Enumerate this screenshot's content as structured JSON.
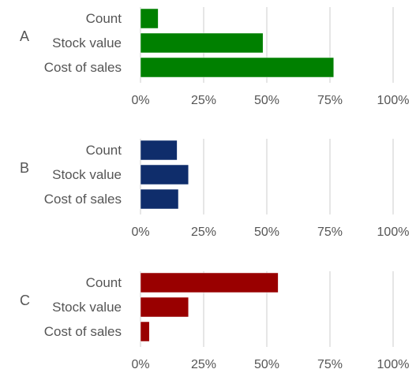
{
  "chart_data": [
    {
      "type": "bar",
      "orientation": "horizontal",
      "panel_label": "A",
      "categories": [
        "Count",
        "Stock value",
        "Cost of sales"
      ],
      "values": [
        0.07,
        0.485,
        0.765
      ],
      "color": "#008000",
      "xlim": [
        0,
        1
      ],
      "xticks": [
        0,
        0.25,
        0.5,
        0.75,
        1
      ],
      "tick_labels": [
        "0%",
        "25%",
        "50%",
        "75%",
        "100%"
      ],
      "grid": true
    },
    {
      "type": "bar",
      "orientation": "horizontal",
      "panel_label": "B",
      "categories": [
        "Count",
        "Stock value",
        "Cost of sales"
      ],
      "values": [
        0.145,
        0.19,
        0.15
      ],
      "color": "#0f2d6b",
      "xlim": [
        0,
        1
      ],
      "xticks": [
        0,
        0.25,
        0.5,
        0.75,
        1
      ],
      "tick_labels": [
        "0%",
        "25%",
        "50%",
        "75%",
        "100%"
      ],
      "grid": true
    },
    {
      "type": "bar",
      "orientation": "horizontal",
      "panel_label": "C",
      "categories": [
        "Count",
        "Stock value",
        "Cost of sales"
      ],
      "values": [
        0.545,
        0.19,
        0.035
      ],
      "color": "#990000",
      "xlim": [
        0,
        1
      ],
      "xticks": [
        0,
        0.25,
        0.5,
        0.75,
        1
      ],
      "tick_labels": [
        "0%",
        "25%",
        "50%",
        "75%",
        "100%"
      ],
      "grid": true
    }
  ],
  "style": {
    "grid_color": "#dddddd",
    "text_color": "#555555",
    "bar_stroke": "#ffffff"
  }
}
